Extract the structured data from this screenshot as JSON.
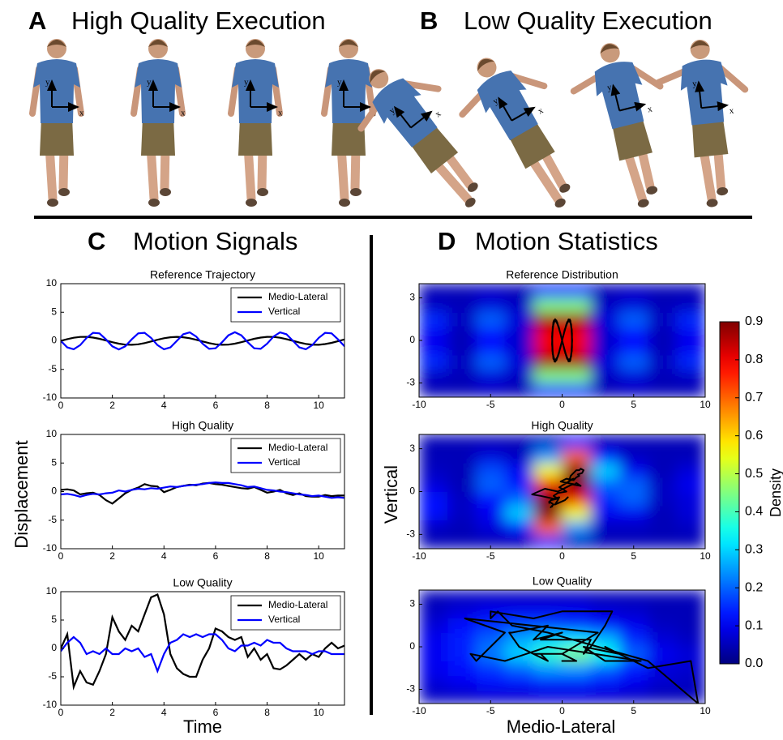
{
  "header": {
    "panel_a": {
      "letter": "A",
      "title": "High Quality Execution"
    },
    "panel_b": {
      "letter": "B",
      "title": "Low Quality Execution"
    },
    "panel_c": {
      "letter": "C",
      "title": "Motion Signals"
    },
    "panel_d": {
      "letter": "D",
      "title": "Motion Statistics"
    }
  },
  "illustrations": {
    "axis_x": "x",
    "axis_y": "y"
  },
  "axis_labels": {
    "signals_y": "Displacement",
    "signals_x": "Time",
    "statistics_y": "Vertical",
    "statistics_x": "Medio-Lateral"
  },
  "colorbar": {
    "label": "Density",
    "lim": [
      0,
      0.9
    ],
    "ticks": [
      {
        "value": 0,
        "label": "0.0"
      },
      0.1,
      0.2,
      0.3,
      0.4,
      0.5,
      0.6,
      0.7,
      0.8,
      0.9
    ]
  },
  "chart_data": [
    {
      "type": "line",
      "title": "Reference Trajectory",
      "x": [
        0,
        0.25,
        0.5,
        0.75,
        1,
        1.25,
        1.5,
        1.75,
        2,
        2.25,
        2.5,
        2.75,
        3,
        3.25,
        3.5,
        3.75,
        4,
        4.25,
        4.5,
        4.75,
        5,
        5.25,
        5.5,
        5.75,
        6,
        6.25,
        6.5,
        6.75,
        7,
        7.25,
        7.5,
        7.75,
        8,
        8.25,
        8.5,
        8.75,
        9,
        9.25,
        9.5,
        9.75,
        10,
        10.25,
        10.5,
        10.75,
        11
      ],
      "series": [
        {
          "name": "Medio-Lateral",
          "color": "#000000",
          "values": [
            0,
            0.3,
            0.54,
            0.68,
            0.69,
            0.57,
            0.35,
            0.06,
            -0.24,
            -0.49,
            -0.66,
            -0.7,
            -0.61,
            -0.4,
            -0.12,
            0.18,
            0.45,
            0.63,
            0.7,
            0.63,
            0.45,
            0.18,
            -0.12,
            -0.4,
            -0.61,
            -0.7,
            -0.66,
            -0.49,
            -0.24,
            0.06,
            0.35,
            0.57,
            0.69,
            0.68,
            0.54,
            0.3,
            0,
            -0.3,
            -0.54,
            -0.68,
            -0.69,
            -0.57,
            -0.35,
            -0.06,
            0.24
          ]
        },
        {
          "name": "Vertical",
          "color": "#0000ff",
          "values": [
            0,
            -1.15,
            -1.48,
            -0.75,
            0.51,
            1.41,
            1.3,
            0.26,
            -0.96,
            -1.5,
            -0.96,
            0.26,
            1.3,
            1.41,
            0.51,
            -0.75,
            -1.48,
            -1.15,
            0,
            1.15,
            1.48,
            0.75,
            -0.51,
            -1.41,
            -1.3,
            -0.26,
            0.96,
            1.5,
            0.96,
            -0.26,
            -1.3,
            -1.41,
            -0.51,
            0.75,
            1.48,
            1.15,
            0,
            -1.15,
            -1.48,
            -0.75,
            0.51,
            1.41,
            1.3,
            0.26,
            -0.96
          ]
        }
      ],
      "xlim": [
        0,
        11
      ],
      "xticks": [
        0,
        2,
        4,
        6,
        8,
        10
      ],
      "ylim": [
        -10,
        10
      ],
      "yticks": [
        -10,
        -5,
        0,
        5,
        10
      ],
      "legend": "upper right"
    },
    {
      "type": "line",
      "title": "High Quality",
      "x": [
        0,
        0.25,
        0.5,
        0.75,
        1,
        1.25,
        1.5,
        1.75,
        2,
        2.25,
        2.5,
        2.75,
        3,
        3.25,
        3.5,
        3.75,
        4,
        4.25,
        4.5,
        4.75,
        5,
        5.25,
        5.5,
        5.75,
        6,
        6.25,
        6.5,
        6.75,
        7,
        7.25,
        7.5,
        7.75,
        8,
        8.25,
        8.5,
        8.75,
        9,
        9.25,
        9.5,
        9.75,
        10,
        10.25,
        10.5,
        10.75,
        11
      ],
      "series": [
        {
          "name": "Medio-Lateral",
          "color": "#000000",
          "values": [
            0.3,
            0.4,
            0.2,
            -0.5,
            -0.3,
            -0.2,
            -0.6,
            -1.5,
            -2.1,
            -1.2,
            -0.3,
            0.3,
            0.7,
            1.3,
            1.0,
            0.9,
            -0.1,
            0.3,
            0.8,
            1.0,
            1.2,
            1.1,
            1.4,
            1.5,
            1.3,
            1.2,
            1.0,
            0.8,
            0.6,
            0.5,
            0.8,
            0.3,
            -0.2,
            0,
            0.3,
            -0.3,
            -0.6,
            -0.3,
            -0.8,
            -0.9,
            -0.9,
            -0.6,
            -0.8,
            -0.7,
            -0.7
          ]
        },
        {
          "name": "Vertical",
          "color": "#0000ff",
          "values": [
            -0.5,
            -0.4,
            -0.6,
            -0.9,
            -0.6,
            -0.4,
            -0.5,
            -0.3,
            -0.2,
            0.2,
            0,
            0.3,
            0.5,
            0.4,
            0.6,
            0.5,
            0.7,
            0.9,
            0.8,
            1.0,
            1.1,
            1.2,
            1.3,
            1.5,
            1.6,
            1.5,
            1.5,
            1.3,
            1.1,
            0.8,
            0.9,
            0.6,
            0.3,
            0.2,
            0,
            -0.1,
            -0.3,
            -0.5,
            -0.6,
            -0.8,
            -0.7,
            -0.9,
            -1.1,
            -1.0,
            -1.1
          ]
        }
      ],
      "xlim": [
        0,
        11
      ],
      "xticks": [
        0,
        2,
        4,
        6,
        8,
        10
      ],
      "ylim": [
        -10,
        10
      ],
      "yticks": [
        -10,
        -5,
        0,
        5,
        10
      ],
      "legend": "upper right"
    },
    {
      "type": "line",
      "title": "Low Quality",
      "x": [
        0,
        0.25,
        0.5,
        0.75,
        1,
        1.25,
        1.5,
        1.75,
        2,
        2.25,
        2.5,
        2.75,
        3,
        3.25,
        3.5,
        3.75,
        4,
        4.25,
        4.5,
        4.75,
        5,
        5.25,
        5.5,
        5.75,
        6,
        6.25,
        6.5,
        6.75,
        7,
        7.25,
        7.5,
        7.75,
        8,
        8.25,
        8.5,
        8.75,
        9,
        9.25,
        9.5,
        9.75,
        10,
        10.25,
        10.5,
        10.75,
        11
      ],
      "series": [
        {
          "name": "Medio-Lateral",
          "color": "#000000",
          "values": [
            0,
            2.5,
            -6.8,
            -4,
            -6,
            -6.4,
            -4,
            -1,
            5.5,
            3,
            1.5,
            4,
            3,
            6,
            9,
            9.5,
            6,
            -1,
            -3.5,
            -4.5,
            -5,
            -5,
            -2,
            0,
            3.5,
            3,
            2,
            1.5,
            2,
            -1.5,
            0,
            -2,
            -1,
            -3.5,
            -3.7,
            -3,
            -2,
            -1,
            -2,
            -1,
            -1.5,
            0,
            1,
            0,
            0.5
          ]
        },
        {
          "name": "Vertical",
          "color": "#0000ff",
          "values": [
            -0.5,
            1,
            2,
            1,
            -1,
            -0.5,
            -1,
            0,
            -1,
            -1,
            0,
            -0.5,
            0,
            -1.5,
            -1,
            -4,
            -1,
            1,
            1.5,
            2.5,
            2,
            2.5,
            2,
            2.5,
            2.5,
            1.5,
            0,
            -0.5,
            0.5,
            0.5,
            1,
            0.5,
            1.5,
            1,
            1,
            0,
            -0.5,
            -0.5,
            -0.5,
            -1,
            -0.5,
            -0.5,
            -1,
            -1,
            -1
          ]
        }
      ],
      "xlim": [
        0,
        11
      ],
      "xticks": [
        0,
        2,
        4,
        6,
        8,
        10
      ],
      "ylim": [
        -10,
        10
      ],
      "yticks": [
        -10,
        -5,
        0,
        5,
        10
      ],
      "legend": "upper right"
    },
    {
      "type": "heatmap",
      "title": "Reference Distribution",
      "x": [
        -9,
        -7,
        -5,
        -3,
        -1,
        1,
        3,
        5,
        7,
        9
      ],
      "y": [
        -3.5,
        -2.5,
        -1.5,
        -0.5,
        0.5,
        1.5,
        2.5,
        3.5
      ],
      "z": [
        [
          0.05,
          0.05,
          0.06,
          0.05,
          0.12,
          0.12,
          0.05,
          0.06,
          0.05,
          0.05
        ],
        [
          0.06,
          0.05,
          0.08,
          0.06,
          0.45,
          0.45,
          0.06,
          0.08,
          0.05,
          0.06
        ],
        [
          0.15,
          0.06,
          0.2,
          0.08,
          0.88,
          0.88,
          0.08,
          0.2,
          0.06,
          0.15
        ],
        [
          0.1,
          0.05,
          0.12,
          0.07,
          0.8,
          0.8,
          0.07,
          0.12,
          0.05,
          0.1
        ],
        [
          0.1,
          0.05,
          0.12,
          0.07,
          0.8,
          0.8,
          0.07,
          0.12,
          0.05,
          0.1
        ],
        [
          0.15,
          0.06,
          0.2,
          0.08,
          0.88,
          0.88,
          0.08,
          0.2,
          0.06,
          0.15
        ],
        [
          0.06,
          0.05,
          0.08,
          0.06,
          0.45,
          0.45,
          0.06,
          0.08,
          0.05,
          0.06
        ],
        [
          0.05,
          0.05,
          0.06,
          0.05,
          0.12,
          0.12,
          0.05,
          0.06,
          0.05,
          0.05
        ]
      ],
      "xlim": [
        -10,
        10
      ],
      "xticks": [
        -10,
        -5,
        0,
        5,
        10
      ],
      "ylim": [
        -4,
        4
      ],
      "yticks": [
        -3,
        0,
        3
      ],
      "colormap": "jet"
    },
    {
      "type": "heatmap",
      "title": "High Quality",
      "x": [
        -9,
        -7,
        -5,
        -3,
        -1,
        1,
        3,
        5,
        7,
        9
      ],
      "y": [
        -3.5,
        -2.5,
        -1.5,
        -0.5,
        0.5,
        1.5,
        2.5,
        3.5
      ],
      "z": [
        [
          0.05,
          0.05,
          0.05,
          0.05,
          0.15,
          0.06,
          0.05,
          0.05,
          0.05,
          0.05
        ],
        [
          0.06,
          0.05,
          0.08,
          0.12,
          0.7,
          0.25,
          0.06,
          0.06,
          0.05,
          0.06
        ],
        [
          0.12,
          0.06,
          0.1,
          0.3,
          0.9,
          0.55,
          0.1,
          0.1,
          0.05,
          0.08
        ],
        [
          0.12,
          0.06,
          0.12,
          0.2,
          0.9,
          0.8,
          0.15,
          0.2,
          0.06,
          0.08
        ],
        [
          0.08,
          0.05,
          0.2,
          0.12,
          0.8,
          0.9,
          0.2,
          0.2,
          0.06,
          0.1
        ],
        [
          0.06,
          0.05,
          0.18,
          0.1,
          0.55,
          0.9,
          0.3,
          0.1,
          0.05,
          0.08
        ],
        [
          0.05,
          0.05,
          0.08,
          0.06,
          0.25,
          0.7,
          0.12,
          0.06,
          0.05,
          0.05
        ],
        [
          0.05,
          0.05,
          0.05,
          0.05,
          0.06,
          0.15,
          0.05,
          0.05,
          0.05,
          0.05
        ]
      ],
      "xlim": [
        -10,
        10
      ],
      "xticks": [
        -10,
        -5,
        0,
        5,
        10
      ],
      "ylim": [
        -4,
        4
      ],
      "yticks": [
        -3,
        0,
        3
      ],
      "colormap": "jet"
    },
    {
      "type": "heatmap",
      "title": "Low Quality",
      "x": [
        -9,
        -7,
        -5,
        -3,
        -1,
        1,
        3,
        5,
        7,
        9
      ],
      "y": [
        -3.5,
        -2.5,
        -1.5,
        -0.5,
        0.5,
        1.5,
        2.5,
        3.5
      ],
      "z": [
        [
          0.06,
          0.06,
          0.07,
          0.07,
          0.08,
          0.08,
          0.07,
          0.06,
          0.05,
          0.05
        ],
        [
          0.08,
          0.1,
          0.12,
          0.12,
          0.14,
          0.14,
          0.12,
          0.1,
          0.07,
          0.06
        ],
        [
          0.1,
          0.12,
          0.16,
          0.2,
          0.25,
          0.25,
          0.2,
          0.14,
          0.08,
          0.07
        ],
        [
          0.1,
          0.14,
          0.22,
          0.3,
          0.38,
          0.45,
          0.35,
          0.2,
          0.1,
          0.08
        ],
        [
          0.1,
          0.14,
          0.2,
          0.26,
          0.3,
          0.32,
          0.28,
          0.15,
          0.08,
          0.06
        ],
        [
          0.08,
          0.12,
          0.15,
          0.18,
          0.18,
          0.16,
          0.12,
          0.1,
          0.06,
          0.05
        ],
        [
          0.06,
          0.08,
          0.1,
          0.1,
          0.1,
          0.1,
          0.08,
          0.07,
          0.05,
          0.05
        ],
        [
          0.05,
          0.06,
          0.06,
          0.06,
          0.06,
          0.06,
          0.05,
          0.05,
          0.05,
          0.05
        ]
      ],
      "xlim": [
        -10,
        10
      ],
      "xticks": [
        -10,
        -5,
        0,
        5,
        10
      ],
      "ylim": [
        -4,
        4
      ],
      "yticks": [
        -3,
        0,
        3
      ],
      "colormap": "jet"
    }
  ]
}
